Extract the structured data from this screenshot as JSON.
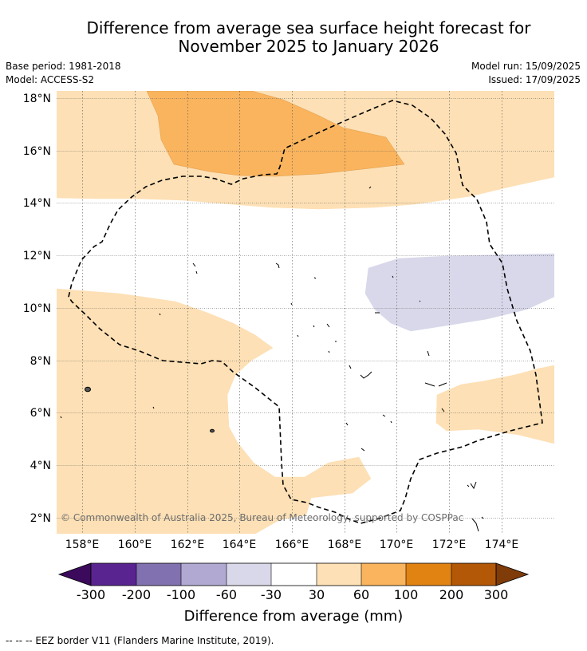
{
  "title": {
    "line1": "Difference from average sea surface height forecast for",
    "line2": "November 2025 to January 2026"
  },
  "meta": {
    "base_period": "Base period: 1981-2018",
    "model": "Model: ACCESS-S2",
    "model_run": "Model run: 15/09/2025",
    "issued": "Issued: 17/09/2025"
  },
  "map": {
    "lat_labels": [
      "18°N",
      "16°N",
      "14°N",
      "12°N",
      "10°N",
      "8°N",
      "6°N",
      "4°N",
      "2°N"
    ],
    "lon_labels": [
      "158°E",
      "160°E",
      "162°E",
      "164°E",
      "166°E",
      "168°E",
      "170°E",
      "172°E",
      "174°E"
    ],
    "copyright": "© Commonwealth of Australia 2025, Bureau of Meteorology, supported by COSPPac",
    "colors": {
      "band_30_60": "#fde0b5",
      "band_60_100": "#f9b45d",
      "band_neg60_neg30": "#d8d8ea",
      "gridline": "#555555"
    }
  },
  "colorbar": {
    "ticks": [
      "-300",
      "-200",
      "-100",
      "-60",
      "-30",
      "30",
      "60",
      "100",
      "200",
      "300"
    ],
    "colors": [
      "#3b0a5c",
      "#5a2490",
      "#8271b0",
      "#b1a9d2",
      "#d8d8ea",
      "#ffffff",
      "#fde0b5",
      "#f9b45d",
      "#e08313",
      "#b35806",
      "#7f3b08"
    ],
    "title": "Difference from average (mm)"
  },
  "footnote": "--  --  -- EEZ border V11 (Flanders Marine Institute, 2019)."
}
